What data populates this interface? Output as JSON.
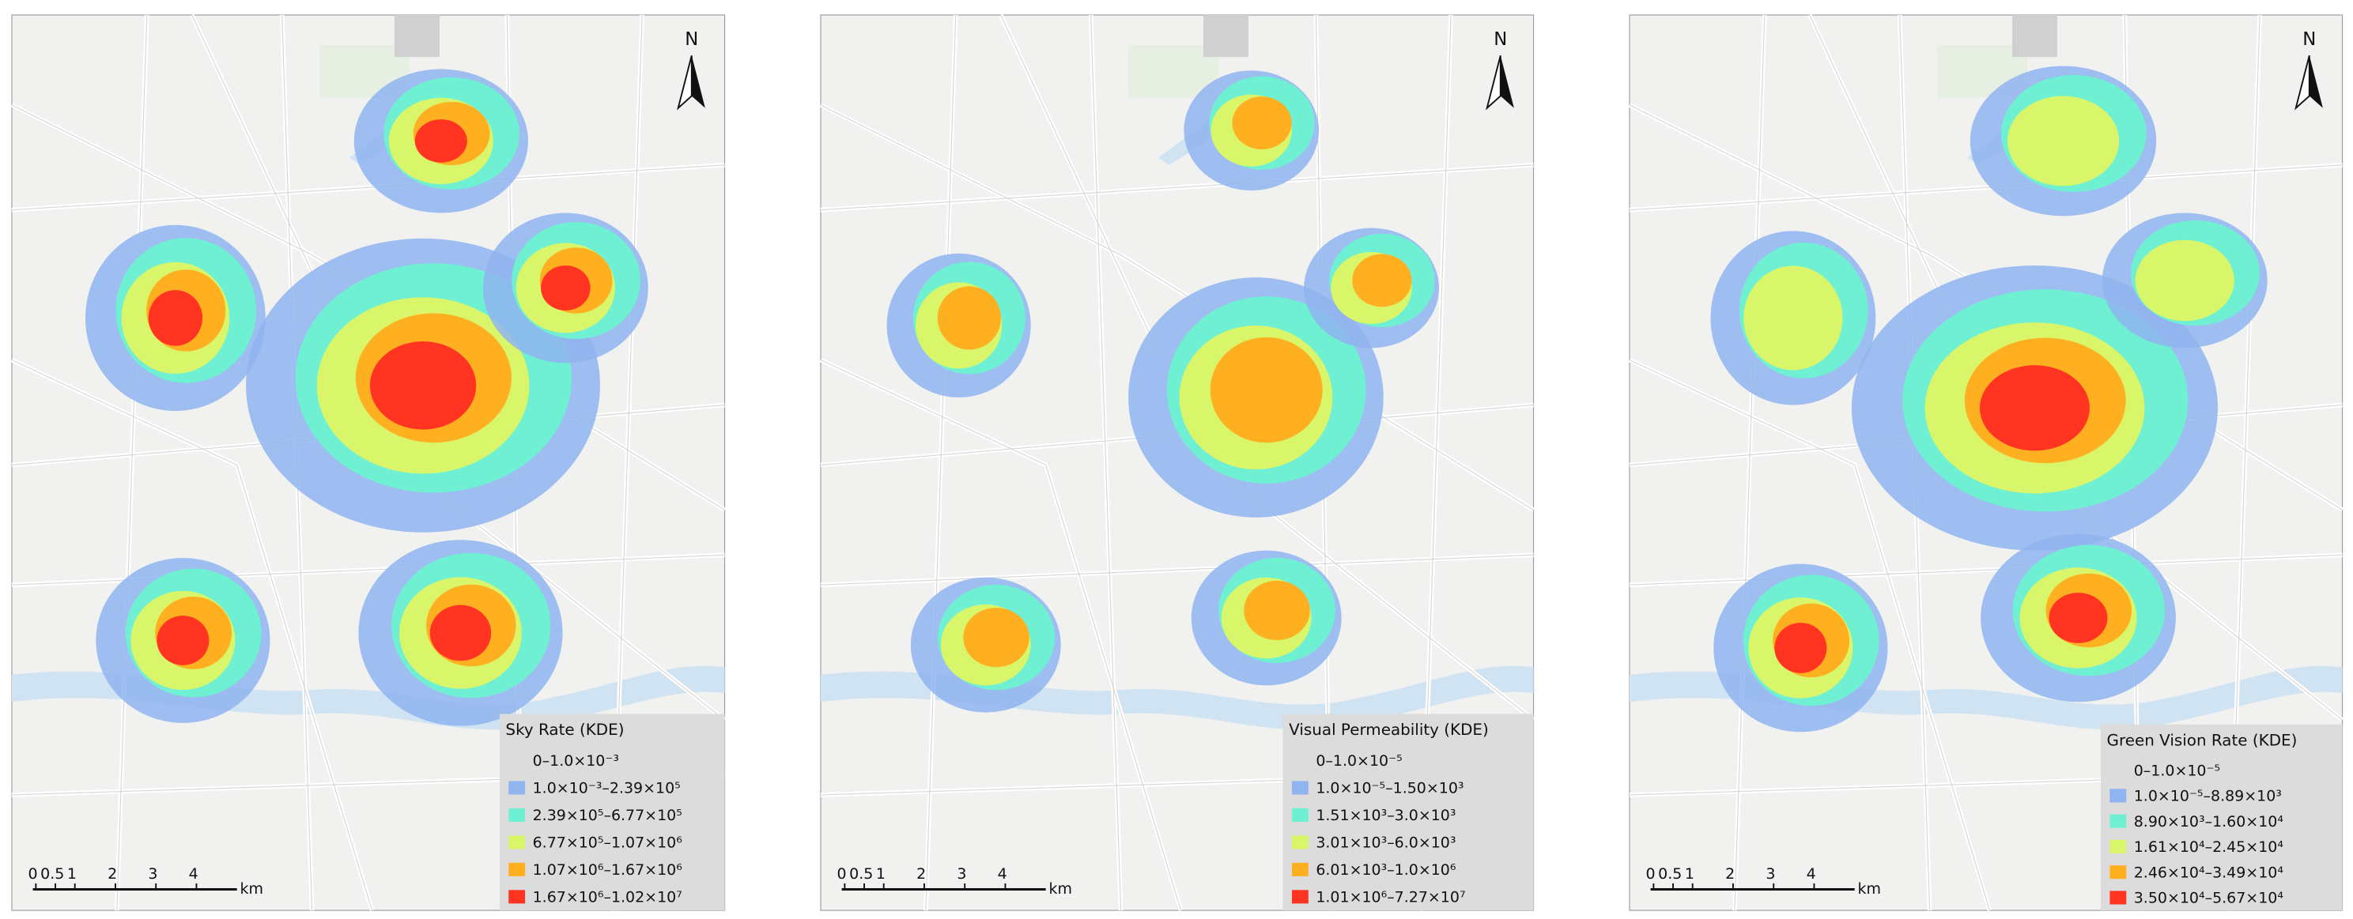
{
  "panels": [
    {
      "north": "N",
      "legend_title": "Sky Rate (KDE)",
      "legend_items": [
        {
          "label": "0–1.0×10⁻³",
          "color": "none"
        },
        {
          "label": "1.0×10⁻³–2.39×10⁵",
          "color": "#8fb4f0"
        },
        {
          "label": "2.39×10⁵–6.77×10⁵",
          "color": "#6ff0d2"
        },
        {
          "label": "6.77×10⁵–1.07×10⁶",
          "color": "#d9f56a"
        },
        {
          "label": "1.07×10⁶–1.67×10⁶",
          "color": "#ffb020"
        },
        {
          "label": "1.67×10⁶–1.02×10⁷",
          "color": "#ff3522"
        }
      ],
      "scale_labels": [
        "0",
        "0.5",
        "1",
        "2",
        "3",
        "4"
      ],
      "scale_unit": "km"
    },
    {
      "north": "N",
      "legend_title": "Visual Permeability (KDE)",
      "legend_items": [
        {
          "label": "0–1.0×10⁻⁵",
          "color": "none"
        },
        {
          "label": "1.0×10⁻⁵–1.50×10³",
          "color": "#8fb4f0"
        },
        {
          "label": "1.51×10³–3.0×10³",
          "color": "#6ff0d2"
        },
        {
          "label": "3.01×10³–6.0×10³",
          "color": "#d9f56a"
        },
        {
          "label": "6.01×10³–1.0×10⁶",
          "color": "#ffb020"
        },
        {
          "label": "1.01×10⁶–7.27×10⁷",
          "color": "#ff3522"
        }
      ],
      "scale_labels": [
        "0",
        "0.5",
        "1",
        "2",
        "3",
        "4"
      ],
      "scale_unit": "km"
    },
    {
      "north": "N",
      "legend_title": "Green Vision Rate (KDE)",
      "legend_items": [
        {
          "label": "0–1.0×10⁻⁵",
          "color": "none"
        },
        {
          "label": "1.0×10⁻⁵–8.89×10³",
          "color": "#8fb4f0"
        },
        {
          "label": "8.90×10³–1.60×10⁴",
          "color": "#6ff0d2"
        },
        {
          "label": "1.61×10⁴–2.45×10⁴",
          "color": "#d9f56a"
        },
        {
          "label": "2.46×10⁴–3.49×10⁴",
          "color": "#ffb020"
        },
        {
          "label": "3.50×10⁴–5.67×10⁴",
          "color": "#ff3522"
        }
      ],
      "scale_labels": [
        "0",
        "0.5",
        "1",
        "2",
        "3",
        "4"
      ],
      "scale_unit": "km"
    }
  ]
}
